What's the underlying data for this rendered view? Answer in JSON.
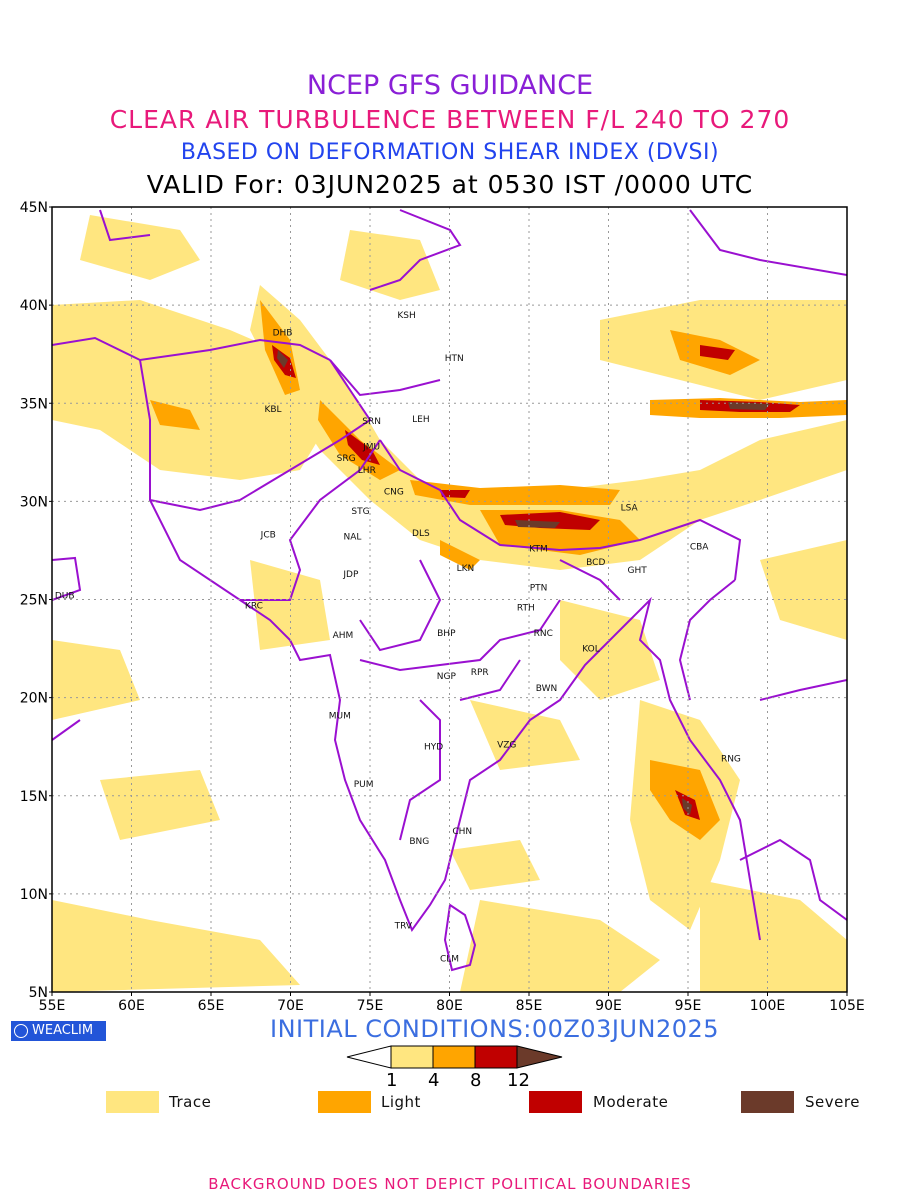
{
  "header": {
    "title": "NCEP GFS GUIDANCE",
    "subtitle": "CLEAR AIR TURBULENCE BETWEEN F/L 240 TO 270",
    "index_line": "BASED ON DEFORMATION SHEAR INDEX (DVSI)",
    "valid_line": "VALID For: 03JUN2025 at 0530 IST /0000 UTC",
    "colors": {
      "title": "#8a1fd6",
      "subtitle": "#e8197a",
      "index_line": "#2244ee",
      "valid_line": "#000000"
    }
  },
  "map": {
    "lat_labels": [
      "45N",
      "40N",
      "35N",
      "30N",
      "25N",
      "20N",
      "15N",
      "10N",
      "5N"
    ],
    "lon_labels": [
      "55E",
      "60E",
      "65E",
      "70E",
      "75E",
      "80E",
      "85E",
      "90E",
      "95E",
      "100E",
      "105E"
    ],
    "lat_range": [
      5,
      45
    ],
    "lon_range": [
      55,
      105
    ],
    "grid": "dotted",
    "boundary_color": "#9a10d0",
    "stations": [
      {
        "code": "KSH",
        "lon": 77.3,
        "lat": 39.5
      },
      {
        "code": "DHB",
        "lon": 69.5,
        "lat": 38.6
      },
      {
        "code": "HTN",
        "lon": 80.3,
        "lat": 37.3
      },
      {
        "code": "KBL",
        "lon": 68.9,
        "lat": 34.7
      },
      {
        "code": "SRN",
        "lon": 75.1,
        "lat": 34.1
      },
      {
        "code": "LEH",
        "lon": 78.2,
        "lat": 34.2
      },
      {
        "code": "JMU",
        "lon": 75.1,
        "lat": 32.8
      },
      {
        "code": "SRG",
        "lon": 73.5,
        "lat": 32.2
      },
      {
        "code": "LHR",
        "lon": 74.8,
        "lat": 31.6
      },
      {
        "code": "CNG",
        "lon": 76.5,
        "lat": 30.5
      },
      {
        "code": "LSA",
        "lon": 91.3,
        "lat": 29.7
      },
      {
        "code": "STG",
        "lon": 74.4,
        "lat": 29.5
      },
      {
        "code": "DLS",
        "lon": 78.2,
        "lat": 28.4
      },
      {
        "code": "JCB",
        "lon": 68.6,
        "lat": 28.3
      },
      {
        "code": "NAL",
        "lon": 73.9,
        "lat": 28.2
      },
      {
        "code": "KTM",
        "lon": 85.6,
        "lat": 27.6
      },
      {
        "code": "CBA",
        "lon": 95.7,
        "lat": 27.7
      },
      {
        "code": "BCD",
        "lon": 89.2,
        "lat": 26.9
      },
      {
        "code": "LKN",
        "lon": 81.0,
        "lat": 26.6
      },
      {
        "code": "GHT",
        "lon": 91.8,
        "lat": 26.5
      },
      {
        "code": "JDP",
        "lon": 73.8,
        "lat": 26.3
      },
      {
        "code": "PTN",
        "lon": 85.6,
        "lat": 25.6
      },
      {
        "code": "DUB",
        "lon": 55.8,
        "lat": 25.2
      },
      {
        "code": "RTH",
        "lon": 84.8,
        "lat": 24.6
      },
      {
        "code": "KRC",
        "lon": 67.7,
        "lat": 24.7
      },
      {
        "code": "AHM",
        "lon": 73.3,
        "lat": 23.2
      },
      {
        "code": "BHP",
        "lon": 79.8,
        "lat": 23.3
      },
      {
        "code": "RNC",
        "lon": 85.9,
        "lat": 23.3
      },
      {
        "code": "KOL",
        "lon": 88.9,
        "lat": 22.5
      },
      {
        "code": "RPR",
        "lon": 81.9,
        "lat": 21.3
      },
      {
        "code": "NGP",
        "lon": 79.8,
        "lat": 21.1
      },
      {
        "code": "BWN",
        "lon": 86.1,
        "lat": 20.5
      },
      {
        "code": "MUM",
        "lon": 73.1,
        "lat": 19.1
      },
      {
        "code": "HYD",
        "lon": 79.0,
        "lat": 17.5
      },
      {
        "code": "VZG",
        "lon": 83.6,
        "lat": 17.6
      },
      {
        "code": "RNG",
        "lon": 97.7,
        "lat": 16.9
      },
      {
        "code": "PUM",
        "lon": 74.6,
        "lat": 15.6
      },
      {
        "code": "CHN",
        "lon": 80.8,
        "lat": 13.2
      },
      {
        "code": "BNG",
        "lon": 78.1,
        "lat": 12.7
      },
      {
        "code": "TRV",
        "lon": 77.1,
        "lat": 8.4
      },
      {
        "code": "CLM",
        "lon": 80.0,
        "lat": 6.7
      }
    ]
  },
  "footer_left": {
    "brand": "WEACLIM",
    "initial_conditions": "INITIAL CONDITIONS:00Z03JUN2025"
  },
  "colorbar": {
    "ticks": [
      "1",
      "4",
      "8",
      "12"
    ],
    "colors": [
      "#ffe680",
      "#ffa500",
      "#c00000",
      "#6b3a2a"
    ]
  },
  "legend": [
    {
      "label": "Trace",
      "color": "#ffe680"
    },
    {
      "label": "Light",
      "color": "#ffa500"
    },
    {
      "label": "Moderate",
      "color": "#c00000"
    },
    {
      "label": "Severe",
      "color": "#6b3a2a"
    }
  ],
  "disclaimer": "BACKGROUND DOES NOT DEPICT POLITICAL BOUNDARIES",
  "disclaimer_color": "#e8197a"
}
